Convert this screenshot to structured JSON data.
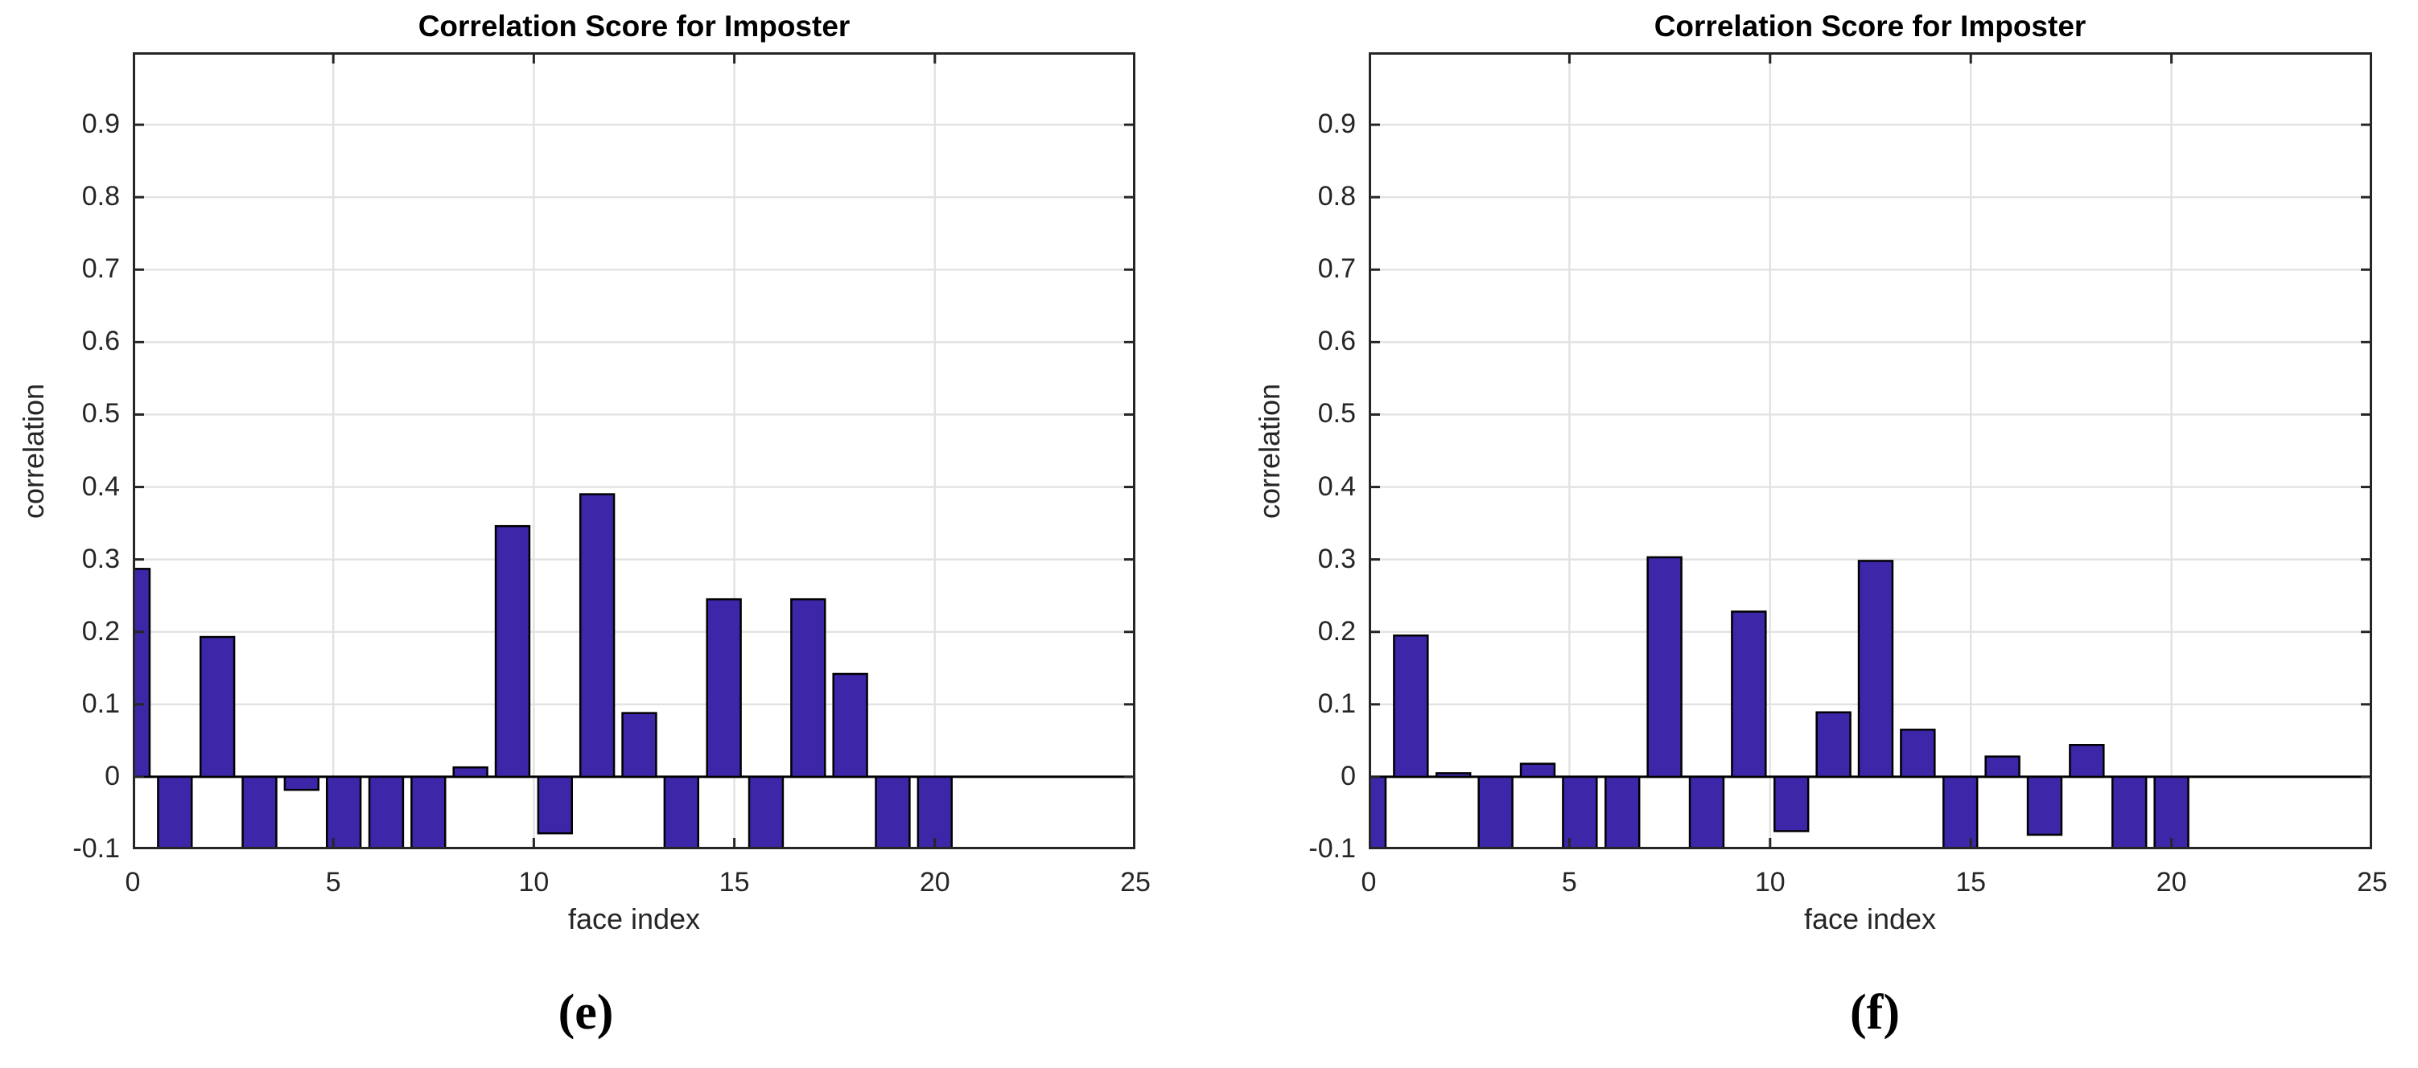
{
  "figure": {
    "charts": [
      {
        "id": "e",
        "title": "Correlation Score for Imposter",
        "xlabel": "face index",
        "ylabel": "correlation",
        "panel_label": "(e)"
      },
      {
        "id": "f",
        "title": "Correlation Score for Imposter",
        "xlabel": "face index",
        "ylabel": "correlation",
        "panel_label": "(f)"
      }
    ]
  },
  "chart_data": [
    {
      "type": "bar",
      "title": "Correlation Score for Imposter",
      "xlabel": "face index",
      "ylabel": "correlation",
      "panel_label": "(e)",
      "x_positions": [
        0,
        1.05,
        2.11,
        3.16,
        4.21,
        5.26,
        6.32,
        7.37,
        8.42,
        9.47,
        10.53,
        11.58,
        12.63,
        13.68,
        14.74,
        15.79,
        16.84,
        17.89,
        18.95,
        20
      ],
      "values": [
        0.287,
        -0.1,
        0.193,
        -0.1,
        -0.018,
        -0.1,
        -0.1,
        -0.1,
        0.013,
        0.346,
        -0.078,
        0.39,
        0.088,
        -0.1,
        0.245,
        -0.1,
        0.245,
        0.142,
        -0.1,
        -0.1
      ],
      "xlim": [
        0,
        25
      ],
      "ylim": [
        -0.1,
        1.0
      ],
      "xtick_values": [
        0,
        5,
        10,
        15,
        20,
        25
      ],
      "xtick_labels": [
        "0",
        "5",
        "10",
        "15",
        "20",
        "25"
      ],
      "ytick_values": [
        -0.1,
        0,
        0.1,
        0.2,
        0.3,
        0.4,
        0.5,
        0.6,
        0.7,
        0.8,
        0.9
      ],
      "ytick_labels": [
        "-0.1",
        "0",
        "0.1",
        "0.2",
        "0.3",
        "0.4",
        "0.5",
        "0.6",
        "0.7",
        "0.8",
        "0.9"
      ],
      "grid": true,
      "bar_width_units": 0.84,
      "bar_color": "#3E26A8",
      "bar_edge_color": "#000000",
      "grid_color": "#E2E2E2",
      "axis_color": "#262626",
      "baseline_value": 0
    },
    {
      "type": "bar",
      "title": "Correlation Score for Imposter",
      "xlabel": "face index",
      "ylabel": "correlation",
      "panel_label": "(f)",
      "x_positions": [
        0,
        1.05,
        2.11,
        3.16,
        4.21,
        5.26,
        6.32,
        7.37,
        8.42,
        9.47,
        10.53,
        11.58,
        12.63,
        13.68,
        14.74,
        15.79,
        16.84,
        17.89,
        18.95,
        20
      ],
      "values": [
        -0.1,
        0.195,
        0.005,
        -0.1,
        0.018,
        -0.1,
        -0.1,
        0.303,
        -0.1,
        0.228,
        -0.075,
        0.089,
        0.298,
        0.065,
        -0.1,
        0.028,
        -0.08,
        0.044,
        -0.1,
        -0.1
      ],
      "xlim": [
        0,
        25
      ],
      "ylim": [
        -0.1,
        1.0
      ],
      "xtick_values": [
        0,
        5,
        10,
        15,
        20,
        25
      ],
      "xtick_labels": [
        "0",
        "5",
        "10",
        "15",
        "20",
        "25"
      ],
      "ytick_values": [
        -0.1,
        0,
        0.1,
        0.2,
        0.3,
        0.4,
        0.5,
        0.6,
        0.7,
        0.8,
        0.9
      ],
      "ytick_labels": [
        "-0.1",
        "0",
        "0.1",
        "0.2",
        "0.3",
        "0.4",
        "0.5",
        "0.6",
        "0.7",
        "0.8",
        "0.9"
      ],
      "grid": true,
      "bar_width_units": 0.84,
      "bar_color": "#3E26A8",
      "bar_edge_color": "#000000",
      "grid_color": "#E2E2E2",
      "axis_color": "#262626",
      "baseline_value": 0
    }
  ]
}
